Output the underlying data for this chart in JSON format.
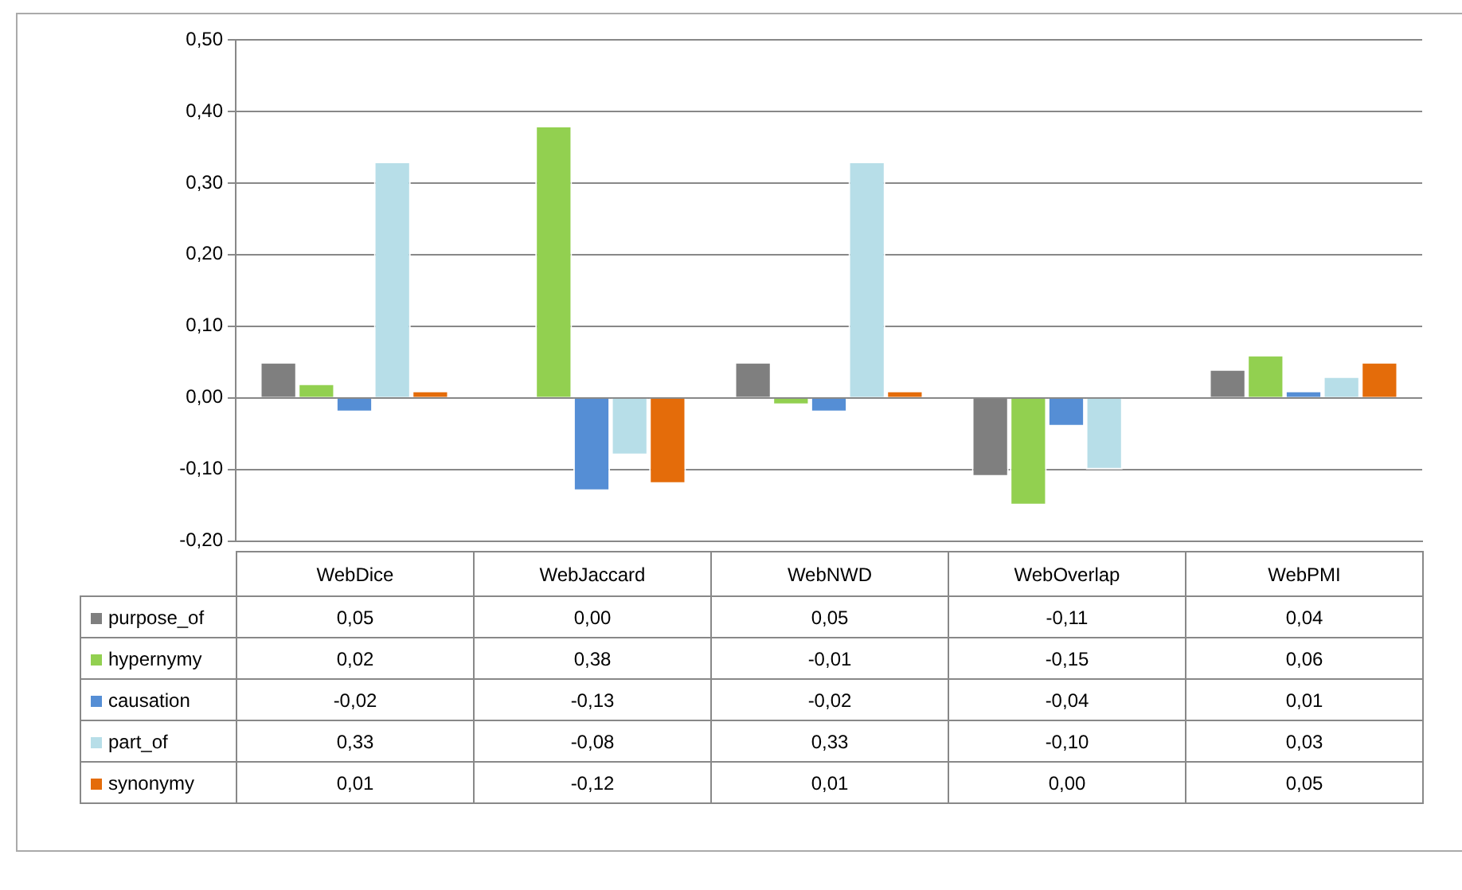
{
  "chart_data": {
    "type": "bar",
    "categories": [
      "WebDice",
      "WebJaccard",
      "WebNWD",
      "WebOverlap",
      "WebPMI"
    ],
    "series": [
      {
        "name": "purpose_of",
        "color": "#7f7f7f",
        "values": [
          0.05,
          0.0,
          0.05,
          -0.11,
          0.04
        ],
        "value_labels": [
          "0,05",
          "0,00",
          "0,05",
          "-0,11",
          "0,04"
        ]
      },
      {
        "name": "hypernymy",
        "color": "#92d050",
        "values": [
          0.02,
          0.38,
          -0.01,
          -0.15,
          0.06
        ],
        "value_labels": [
          "0,02",
          "0,38",
          "-0,01",
          "-0,15",
          "0,06"
        ]
      },
      {
        "name": "causation",
        "color": "#558ed5",
        "values": [
          -0.02,
          -0.13,
          -0.02,
          -0.04,
          0.01
        ],
        "value_labels": [
          "-0,02",
          "-0,13",
          "-0,02",
          "-0,04",
          "0,01"
        ]
      },
      {
        "name": "part_of",
        "color": "#b7dee8",
        "values": [
          0.33,
          -0.08,
          0.33,
          -0.1,
          0.03
        ],
        "value_labels": [
          "0,33",
          "-0,08",
          "0,33",
          "-0,10",
          "0,03"
        ]
      },
      {
        "name": "synonymy",
        "color": "#e46c0a",
        "values": [
          0.01,
          -0.12,
          0.01,
          0.0,
          0.05
        ],
        "value_labels": [
          "0,01",
          "-0,12",
          "0,01",
          "0,00",
          "0,05"
        ]
      }
    ],
    "ylim": [
      -0.2,
      0.5
    ],
    "yticks": [
      {
        "value": -0.2,
        "label": "-0,20"
      },
      {
        "value": -0.1,
        "label": "-0,10"
      },
      {
        "value": 0,
        "label": "0,00"
      },
      {
        "value": 0.1,
        "label": "0,10"
      },
      {
        "value": 0.2,
        "label": "0,20"
      },
      {
        "value": 0.3,
        "label": "0,30"
      },
      {
        "value": 0.4,
        "label": "0,40"
      },
      {
        "value": 0.5,
        "label": "0,50"
      }
    ],
    "grid": "y",
    "legend": "bottom"
  }
}
